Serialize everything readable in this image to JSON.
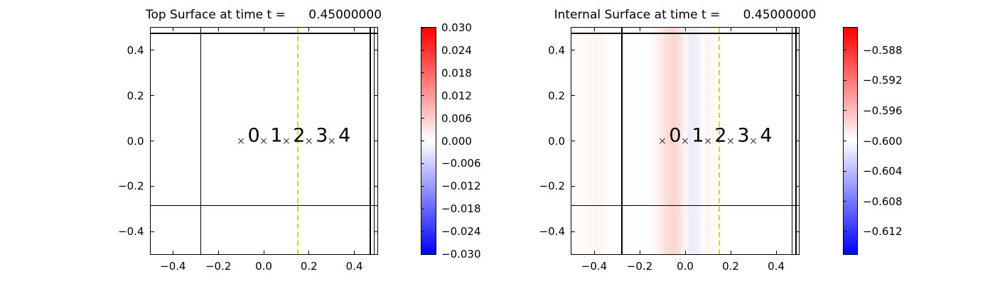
{
  "chart_data": [
    {
      "type": "heatmap",
      "title": "Top Surface at time t =      0.45000000",
      "xlim": [
        -0.5,
        0.5
      ],
      "ylim": [
        -0.5,
        0.5
      ],
      "x_tick_values": [
        -0.4,
        -0.2,
        0.0,
        0.2,
        0.4
      ],
      "x_tick_labels": [
        "−0.4",
        "−0.2",
        "0.0",
        "0.2",
        "0.4"
      ],
      "y_tick_values": [
        0.4,
        0.2,
        0.0,
        -0.2,
        -0.4
      ],
      "y_tick_labels": [
        "0.4",
        "0.2",
        "0.0",
        "−0.2",
        "−0.4"
      ],
      "colorbar": {
        "cmap_name": "blue-white-red",
        "cmap": [
          "#0000ff",
          "#ffffff",
          "#ff0000"
        ],
        "vmin": -0.03,
        "vmax": 0.03,
        "tick_values": [
          0.03,
          0.024,
          0.018,
          0.012,
          0.006,
          0.0,
          -0.006,
          -0.012,
          -0.018,
          -0.024,
          -0.03
        ],
        "tick_labels": [
          "0.030",
          "0.024",
          "0.018",
          "0.012",
          "0.006",
          "0.000",
          "−0.006",
          "−0.012",
          "−0.018",
          "−0.024",
          "−0.030"
        ]
      },
      "field": {
        "description": "top surface elevation ≈ 0.000 everywhere, renders uniformly white",
        "gradient_stops": []
      },
      "grid_lines": {
        "vertical_x": [
          -0.278,
          0.47,
          0.487
        ],
        "horizontal_y": [
          0.475,
          -0.285
        ]
      },
      "dashed_line": {
        "x": 0.15
      },
      "marker_glyph": "×",
      "markers": [
        {
          "label": "0",
          "x": -0.1,
          "y": 0.0
        },
        {
          "label": "1",
          "x": 0.0,
          "y": 0.0
        },
        {
          "label": "2",
          "x": 0.1,
          "y": 0.0
        },
        {
          "label": "3",
          "x": 0.2,
          "y": 0.0
        },
        {
          "label": "4",
          "x": 0.3,
          "y": 0.0
        }
      ]
    },
    {
      "type": "heatmap",
      "title": "Internal Surface at time t =      0.45000000",
      "xlim": [
        -0.5,
        0.5
      ],
      "ylim": [
        -0.5,
        0.5
      ],
      "x_tick_values": [
        -0.4,
        -0.2,
        0.0,
        0.2,
        0.4
      ],
      "x_tick_labels": [
        "−0.4",
        "−0.2",
        "0.0",
        "0.2",
        "0.4"
      ],
      "y_tick_values": [
        0.4,
        0.2,
        0.0,
        -0.2,
        -0.4
      ],
      "y_tick_labels": [
        "0.4",
        "0.2",
        "0.0",
        "−0.2",
        "−0.4"
      ],
      "colorbar": {
        "cmap_name": "blue-white-red",
        "cmap": [
          "#0000ff",
          "#ffffff",
          "#ff0000"
        ],
        "vmin": -0.615,
        "vmax": -0.585,
        "tick_values": [
          -0.588,
          -0.592,
          -0.596,
          -0.6,
          -0.604,
          -0.608,
          -0.612
        ],
        "tick_labels": [
          "−0.588",
          "−0.592",
          "−0.596",
          "−0.600",
          "−0.604",
          "−0.608",
          "−0.612"
        ]
      },
      "field": {
        "description": "internal surface depth ≈ −0.600; vertical bands: pink (raised ≈ −0.596) near x≈−0.05, pale blue (lowered ≈ −0.603) near x≈0.03, faint pink near x≈0.10 and x≈−0.38",
        "gradient_stops": [
          {
            "x": -0.5,
            "color": "#fffefe"
          },
          {
            "x": -0.45,
            "color": "#fefbfa"
          },
          {
            "x": -0.41,
            "color": "#fdf7f4"
          },
          {
            "x": -0.38,
            "color": "#fcf5f1"
          },
          {
            "x": -0.34,
            "color": "#fefcfb"
          },
          {
            "x": -0.3,
            "color": "#fffffe"
          },
          {
            "x": -0.16,
            "color": "#fffefe"
          },
          {
            "x": -0.11,
            "color": "#fdeeec"
          },
          {
            "x": -0.08,
            "color": "#fcdcd7"
          },
          {
            "x": -0.05,
            "color": "#fbd7d2"
          },
          {
            "x": -0.025,
            "color": "#fcdfdb"
          },
          {
            "x": -0.005,
            "color": "#fdf1ef"
          },
          {
            "x": 0.005,
            "color": "#f6f6fc"
          },
          {
            "x": 0.02,
            "color": "#eceefa"
          },
          {
            "x": 0.04,
            "color": "#ebedfa"
          },
          {
            "x": 0.055,
            "color": "#f0f1fb"
          },
          {
            "x": 0.07,
            "color": "#f8f8fd"
          },
          {
            "x": 0.082,
            "color": "#fcfafb"
          },
          {
            "x": 0.095,
            "color": "#fdf4f2"
          },
          {
            "x": 0.11,
            "color": "#fdf6f4"
          },
          {
            "x": 0.13,
            "color": "#fefbfa"
          },
          {
            "x": 0.16,
            "color": "#ffffff"
          },
          {
            "x": 0.5,
            "color": "#ffffff"
          }
        ]
      },
      "grid_lines": {
        "vertical_x": [
          -0.278,
          0.47,
          0.487
        ],
        "horizontal_y": [
          0.475,
          -0.285
        ]
      },
      "dashed_line": {
        "x": 0.15
      },
      "marker_glyph": "×",
      "markers": [
        {
          "label": "0",
          "x": -0.1,
          "y": 0.0
        },
        {
          "label": "1",
          "x": 0.0,
          "y": 0.0
        },
        {
          "label": "2",
          "x": 0.1,
          "y": 0.0
        },
        {
          "label": "3",
          "x": 0.2,
          "y": 0.0
        },
        {
          "label": "4",
          "x": 0.3,
          "y": 0.0
        }
      ]
    }
  ],
  "colors": {
    "background": "#ffffff",
    "axis": "#000000",
    "text": "#000000",
    "dashed_yellow": "#d9d900",
    "marker": "#3f3f3f"
  }
}
